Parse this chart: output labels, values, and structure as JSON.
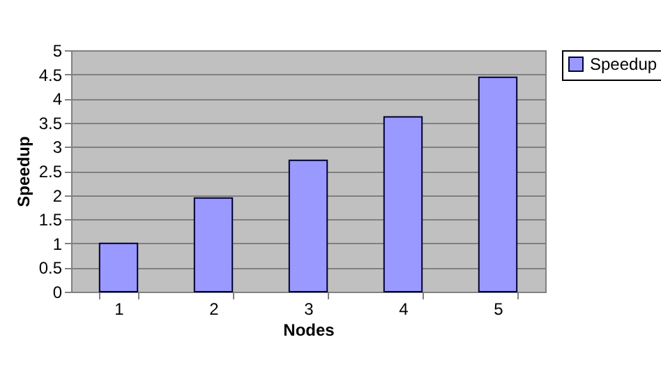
{
  "chart_data": {
    "type": "bar",
    "xlabel": "Nodes",
    "ylabel": "Speedup",
    "categories": [
      "1",
      "2",
      "3",
      "4",
      "5"
    ],
    "series": [
      {
        "name": "Speedup",
        "color": "#9999ff",
        "values": [
          1.0,
          1.94,
          2.72,
          3.62,
          4.44
        ]
      }
    ],
    "ylim": [
      0,
      5
    ],
    "yticks": [
      0,
      0.5,
      1,
      1.5,
      2,
      2.5,
      3,
      3.5,
      4,
      4.5,
      5
    ],
    "grid": "y",
    "legend": "right"
  }
}
